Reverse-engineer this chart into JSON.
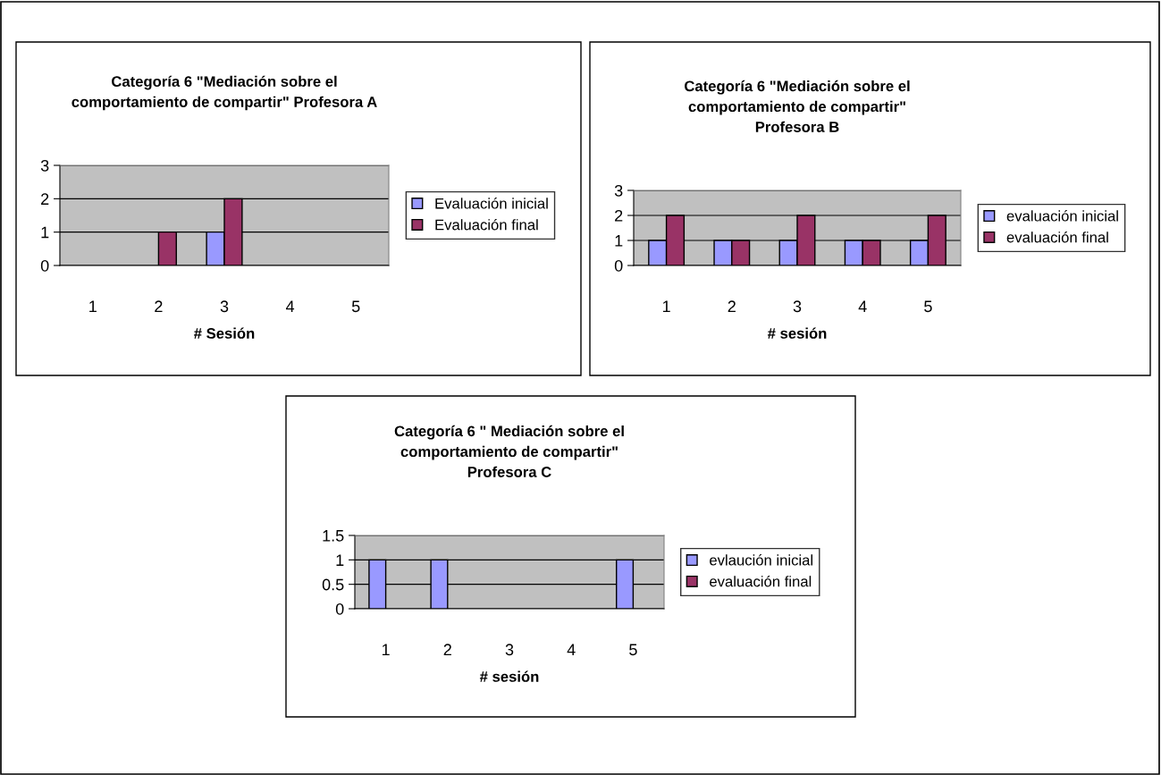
{
  "chart_data": [
    {
      "type": "bar",
      "title": "Categoría 6 \"Mediación sobre el\ncomportamiento de compartir\" Profesora A",
      "xlabel": "# Sesión",
      "categories": [
        "1",
        "2",
        "3",
        "4",
        "5"
      ],
      "series": [
        {
          "name": "Evaluación inicial",
          "color": "#9999ff",
          "values": [
            null,
            null,
            1,
            null,
            null
          ]
        },
        {
          "name": "Evaluación final",
          "color": "#993366",
          "values": [
            null,
            1,
            2,
            null,
            null
          ]
        }
      ],
      "ylim": [
        0,
        3
      ],
      "yticks": [
        0,
        1,
        2,
        3
      ],
      "grid": "y",
      "legend": "right"
    },
    {
      "type": "bar",
      "title": "Categoría 6 \"Mediación sobre el\ncomportamiento de compartir\"\nProfesora B",
      "xlabel": "# sesión",
      "categories": [
        "1",
        "2",
        "3",
        "4",
        "5"
      ],
      "series": [
        {
          "name": "evaluación inicial",
          "color": "#9999ff",
          "values": [
            1,
            1,
            1,
            1,
            1
          ]
        },
        {
          "name": "evaluación final",
          "color": "#993366",
          "values": [
            2,
            1,
            2,
            1,
            2
          ]
        }
      ],
      "ylim": [
        0,
        3
      ],
      "yticks": [
        0,
        1,
        2,
        3
      ],
      "grid": "y",
      "legend": "right"
    },
    {
      "type": "bar",
      "title": "Categoría 6 \" Mediación sobre el\ncomportamiento de compartir\"\nProfesora C",
      "xlabel": "# sesión",
      "categories": [
        "1",
        "2",
        "3",
        "4",
        "5"
      ],
      "series": [
        {
          "name": "evlaución inicial",
          "color": "#9999ff",
          "values": [
            1,
            1,
            null,
            null,
            1
          ]
        },
        {
          "name": "evaluación final",
          "color": "#993366",
          "values": [
            null,
            null,
            null,
            null,
            null
          ]
        }
      ],
      "ylim": [
        0,
        1.5
      ],
      "yticks": [
        0,
        {
          "value": 0.5,
          "label": "0.5"
        },
        1,
        {
          "value": 1.5,
          "label": "1.5"
        }
      ],
      "grid": "y",
      "legend": "right"
    }
  ]
}
